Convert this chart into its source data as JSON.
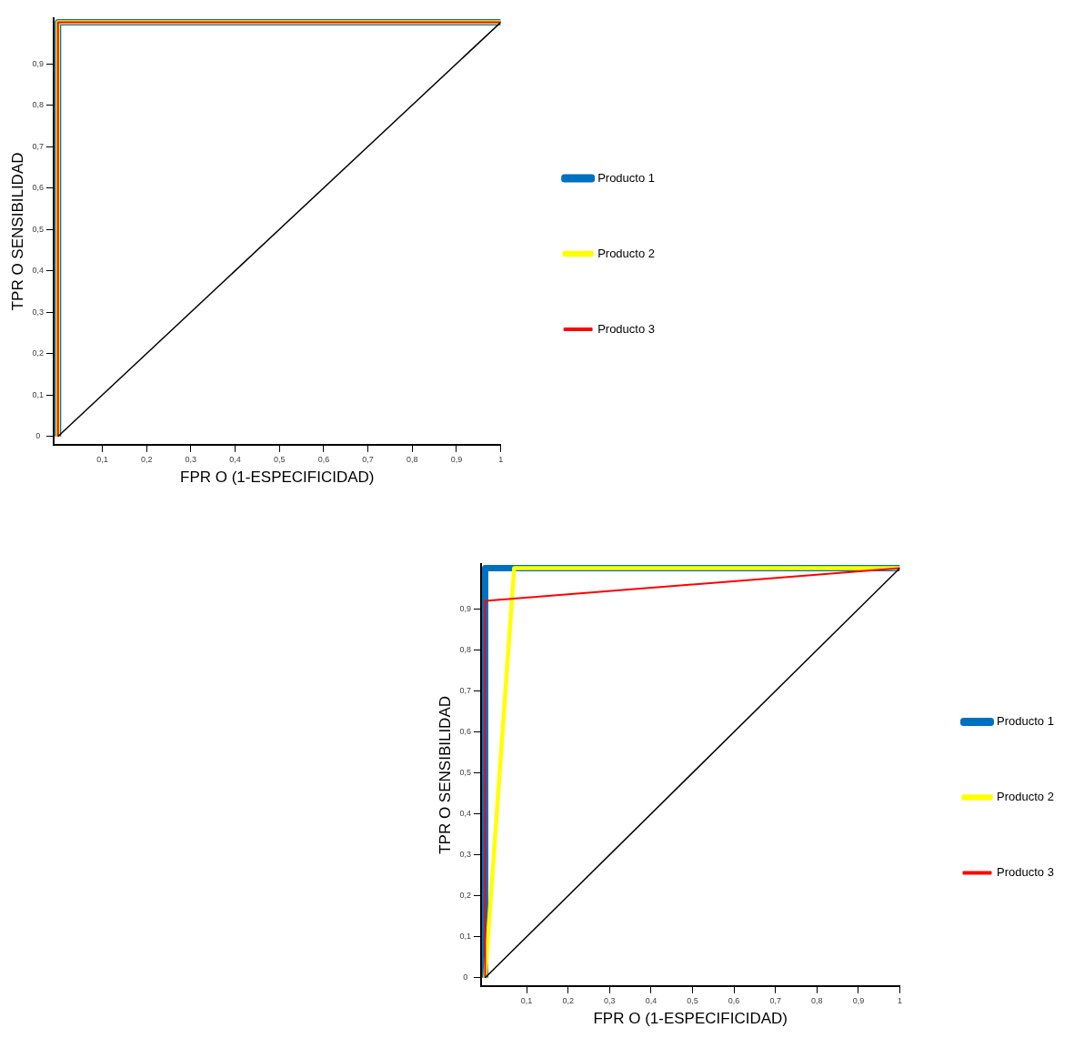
{
  "chart_data": [
    {
      "type": "line",
      "xlabel": "FPR O (1-ESPECIFICIDAD)",
      "ylabel": "TPR O SENSIBILIDAD",
      "xlim": [
        -0.01,
        1
      ],
      "ylim": [
        -0.02,
        1.01
      ],
      "xticks": [
        {
          "value": 0.1,
          "label": "0,1"
        },
        {
          "value": 0.2,
          "label": "0,2"
        },
        {
          "value": 0.3,
          "label": "0,3"
        },
        {
          "value": 0.4,
          "label": "0,4"
        },
        {
          "value": 0.5,
          "label": "0,5"
        },
        {
          "value": 0.6,
          "label": "0,6"
        },
        {
          "value": 0.7,
          "label": "0,7"
        },
        {
          "value": 0.8,
          "label": "0,8"
        },
        {
          "value": 0.9,
          "label": "0,9"
        },
        1
      ],
      "yticks": [
        0,
        {
          "value": 0.1,
          "label": "0,1"
        },
        {
          "value": 0.2,
          "label": "0,2"
        },
        {
          "value": 0.3,
          "label": "0,3"
        },
        {
          "value": 0.4,
          "label": "0,4"
        },
        {
          "value": 0.5,
          "label": "0,5"
        },
        {
          "value": 0.6,
          "label": "0,6"
        },
        {
          "value": 0.7,
          "label": "0,7"
        },
        {
          "value": 0.8,
          "label": "0,8"
        },
        {
          "value": 0.9,
          "label": "0,9"
        }
      ],
      "grid": false,
      "legend": "right",
      "marker": "none",
      "series": [
        {
          "name": "Producto 1",
          "color": "#0070c0",
          "x": [
            0,
            0,
            1
          ],
          "values": [
            0,
            1,
            1
          ]
        },
        {
          "name": "Producto 2",
          "color": "#ffff00",
          "x": [
            0,
            0,
            1
          ],
          "values": [
            0,
            1,
            1
          ]
        },
        {
          "name": "Producto 3",
          "color": "#ff0000",
          "x": [
            0,
            0,
            1
          ],
          "values": [
            0,
            1,
            1
          ]
        },
        {
          "color": "#000000",
          "x": [
            0,
            1
          ],
          "values": [
            0,
            1
          ]
        }
      ]
    },
    {
      "type": "line",
      "xlabel": "FPR O (1-ESPECIFICIDAD)",
      "ylabel": "TPR O SENSIBILIDAD",
      "xlim": [
        -0.01,
        1
      ],
      "ylim": [
        -0.02,
        1.01
      ],
      "xticks": [
        {
          "value": 0.1,
          "label": "0,1"
        },
        {
          "value": 0.2,
          "label": "0,2"
        },
        {
          "value": 0.3,
          "label": "0,3"
        },
        {
          "value": 0.4,
          "label": "0,4"
        },
        {
          "value": 0.5,
          "label": "0,5"
        },
        {
          "value": 0.6,
          "label": "0,6"
        },
        {
          "value": 0.7,
          "label": "0,7"
        },
        {
          "value": 0.8,
          "label": "0,8"
        },
        {
          "value": 0.9,
          "label": "0,9"
        },
        1
      ],
      "yticks": [
        0,
        {
          "value": 0.1,
          "label": "0,1"
        },
        {
          "value": 0.2,
          "label": "0,2"
        },
        {
          "value": 0.3,
          "label": "0,3"
        },
        {
          "value": 0.4,
          "label": "0,4"
        },
        {
          "value": 0.5,
          "label": "0,5"
        },
        {
          "value": 0.6,
          "label": "0,6"
        },
        {
          "value": 0.7,
          "label": "0,7"
        },
        {
          "value": 0.8,
          "label": "0,8"
        },
        {
          "value": 0.9,
          "label": "0,9"
        }
      ],
      "grid": false,
      "legend": "right",
      "marker": "none",
      "series": [
        {
          "name": "Producto 1",
          "color": "#0070c0",
          "x": [
            0,
            0,
            1
          ],
          "values": [
            0,
            1,
            1
          ]
        },
        {
          "name": "Producto 2",
          "color": "#ffff00",
          "x": [
            0,
            0.07,
            1
          ],
          "values": [
            0,
            1,
            1
          ]
        },
        {
          "name": "Producto 3",
          "color": "#ff0000",
          "x": [
            0,
            0,
            1
          ],
          "values": [
            0,
            0.92,
            1
          ]
        },
        {
          "color": "#000000",
          "x": [
            0,
            1
          ],
          "values": [
            0,
            1
          ]
        }
      ]
    }
  ]
}
